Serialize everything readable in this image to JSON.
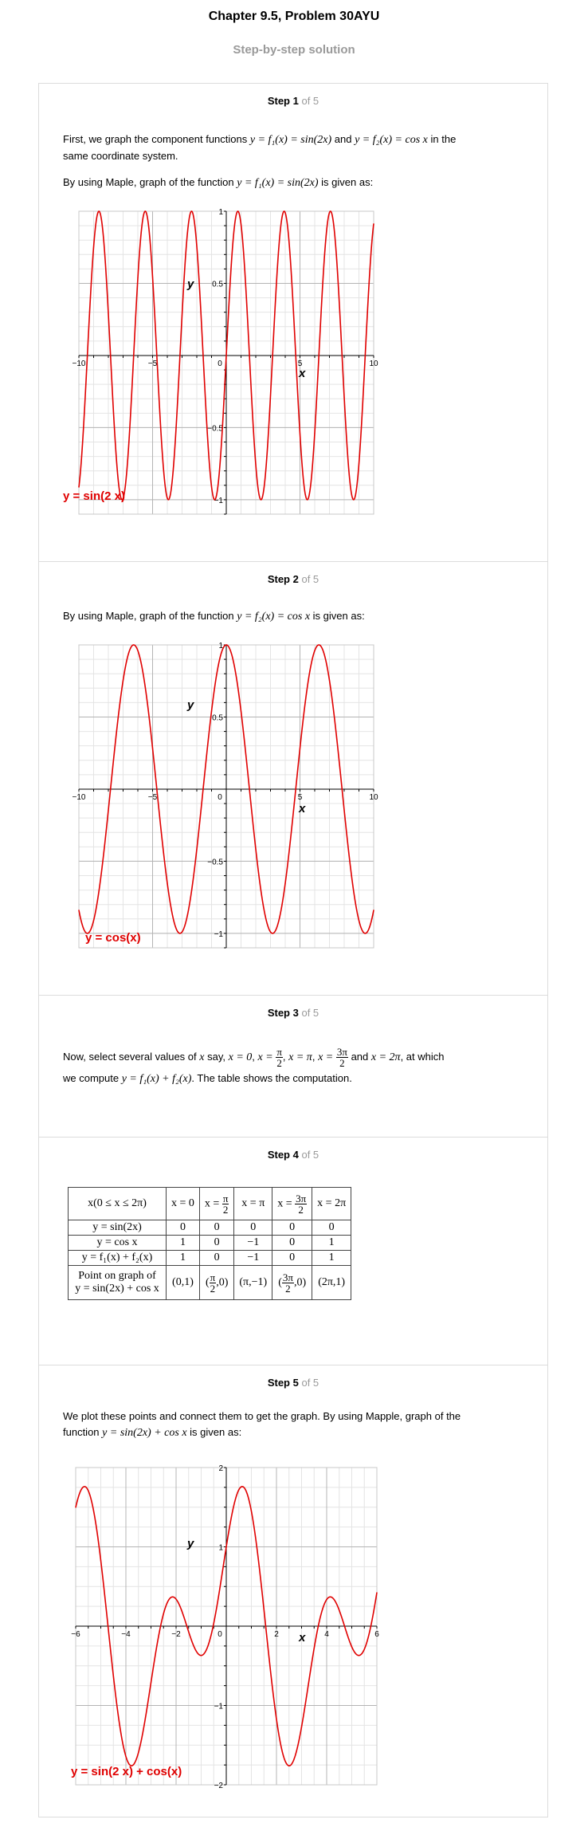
{
  "header": {
    "title": "Chapter 9.5, Problem 30AYU",
    "subtitle": "Step-by-step solution"
  },
  "step_total_label": "of 5",
  "steps": [
    {
      "label": "Step 1",
      "text1_a": "First, we graph the component functions",
      "eq1": "y = f₁(x) = sin(2x)",
      "and": "and",
      "eq2": "y = f₂(x) = cos x",
      "text1_b": "in the",
      "text1_c": "same coordinate system.",
      "text2_a": "By using Maple, graph of the function",
      "eq3": "y = f₁(x) = sin(2x)",
      "text2_b": "is given as:"
    },
    {
      "label": "Step 2",
      "text_a": "By using Maple, graph of the function",
      "eq": "y = f₂(x) = cos x",
      "text_b": "is given as:"
    },
    {
      "label": "Step 3",
      "text_a": "Now, select several values of",
      "var": "x",
      "say": "say,",
      "x0": "x = 0",
      "xpi2_pre": "x =",
      "pi": "π",
      "two": "2",
      "xpi": "x = π",
      "x3pi2_pre": "x =",
      "threepi": "3π",
      "and": "and",
      "x2pi": "x = 2π",
      "text_b": ", at which",
      "text_c": "we compute",
      "eq": "y = f₁(x) + f₂(x)",
      "text_d": ". The table shows the computation."
    },
    {
      "label": "Step 4"
    },
    {
      "label": "Step 5",
      "text_a": "We plot these points and connect them to get the graph. By using Mapple, graph of the",
      "text_b": "function",
      "eq": "y = sin(2x) + cos x",
      "text_c": "is given as:"
    }
  ],
  "table": {
    "header": [
      "x(0 ≤ x ≤ 2π)",
      "x = 0",
      "x = π/2",
      "x = π",
      "x = 3π/2",
      "x = 2π"
    ],
    "rows": [
      [
        "y = sin(2x)",
        "0",
        "0",
        "0",
        "0",
        "0"
      ],
      [
        "y = cos x",
        "1",
        "0",
        "−1",
        "0",
        "1"
      ],
      [
        "y = f₁(x) + f₂(x)",
        "1",
        "0",
        "−1",
        "0",
        "1"
      ]
    ],
    "points_label_1": "Point on graph of",
    "points_label_2": "y = sin(2x) + cos x",
    "points": [
      "(0,1)",
      "(π/2,0)",
      "(π,−1)",
      "(3π/2,0)",
      "(2π,1)"
    ]
  },
  "chart_data": [
    {
      "type": "line",
      "function": "sin(2x)",
      "x": [
        -10,
        -9.5,
        -9,
        -8.5,
        -8,
        -7.5,
        -7,
        -6.5,
        -6,
        -5.5,
        -5,
        -4.5,
        -4,
        -3.5,
        -3,
        -2.5,
        -2,
        -1.5,
        -1,
        -0.5,
        0,
        0.5,
        1,
        1.5,
        2,
        2.5,
        3,
        3.5,
        4,
        4.5,
        5,
        5.5,
        6,
        6.5,
        7,
        7.5,
        8,
        8.5,
        9,
        9.5,
        10
      ],
      "y": [
        -0.913,
        -0.151,
        0.751,
        0.961,
        0.288,
        -0.65,
        -0.991,
        -0.42,
        0.537,
        1.0,
        0.544,
        -0.412,
        -0.989,
        -0.657,
        0.279,
        0.959,
        0.757,
        -0.141,
        -0.909,
        -0.841,
        0,
        0.841,
        0.909,
        0.141,
        -0.757,
        -0.959,
        -0.279,
        0.657,
        0.989,
        0.412,
        -0.544,
        -1.0,
        -0.537,
        0.42,
        0.991,
        0.65,
        -0.288,
        -0.961,
        -0.751,
        0.151,
        0.913
      ],
      "xlim": [
        -10,
        10
      ],
      "ylim": [
        -1.1,
        1
      ],
      "xlabel": "x",
      "ylabel": "y",
      "x_ticks": [
        "−10",
        "−5",
        "0",
        "5",
        "10"
      ],
      "y_ticks": [
        "1",
        "0.5",
        "−0.5",
        "−1"
      ],
      "legend": "y = sin(2 x)",
      "grid": true,
      "color": "#e00000"
    },
    {
      "type": "line",
      "function": "cos(x)",
      "x": [
        -10,
        -9,
        -8,
        -7,
        -6,
        -5,
        -4,
        -3,
        -2,
        -1,
        0,
        1,
        2,
        3,
        4,
        5,
        6,
        7,
        8,
        9,
        10
      ],
      "y": [
        -0.839,
        -0.911,
        -0.146,
        0.754,
        0.96,
        0.284,
        -0.654,
        -0.99,
        -0.416,
        0.54,
        1,
        0.54,
        -0.416,
        -0.99,
        -0.654,
        0.284,
        0.96,
        0.754,
        -0.146,
        -0.911,
        -0.839
      ],
      "xlim": [
        -10,
        10
      ],
      "ylim": [
        -1.1,
        1
      ],
      "xlabel": "x",
      "ylabel": "y",
      "x_ticks": [
        "−10",
        "−5",
        "0",
        "5",
        "10"
      ],
      "y_ticks": [
        "1",
        "0.5",
        "−0.5",
        "−1"
      ],
      "legend": "y = cos(x)",
      "grid": true,
      "color": "#e00000"
    },
    {
      "type": "line",
      "function": "sin(2x) + cos(x)",
      "x": [
        -6,
        -5.5,
        -5,
        -4.5,
        -4,
        -3.5,
        -3,
        -2.5,
        -2,
        -1.5,
        -1,
        -0.5,
        0,
        0.5,
        1,
        1.5,
        2,
        2.5,
        3,
        3.5,
        4,
        4.5,
        5,
        5.5,
        6
      ],
      "y": [
        1.497,
        1.709,
        0.828,
        -0.623,
        -1.643,
        -1.593,
        -0.711,
        0.158,
        0.341,
        -0.071,
        -0.369,
        0.036,
        1,
        1.719,
        1.45,
        0.212,
        -1.173,
        -1.76,
        -1.269,
        -0.279,
        0.335,
        0.2,
        -0.26,
        -0.291,
        0.423
      ],
      "xlim": [
        -6,
        6
      ],
      "ylim": [
        -2,
        2
      ],
      "xlabel": "x",
      "ylabel": "y",
      "x_ticks": [
        "−6",
        "−4",
        "−2",
        "0",
        "2",
        "4",
        "6"
      ],
      "y_ticks": [
        "2",
        "1",
        "−1",
        "−2"
      ],
      "legend": "y = sin(2 x) + cos(x)",
      "grid": true,
      "color": "#e00000"
    }
  ]
}
